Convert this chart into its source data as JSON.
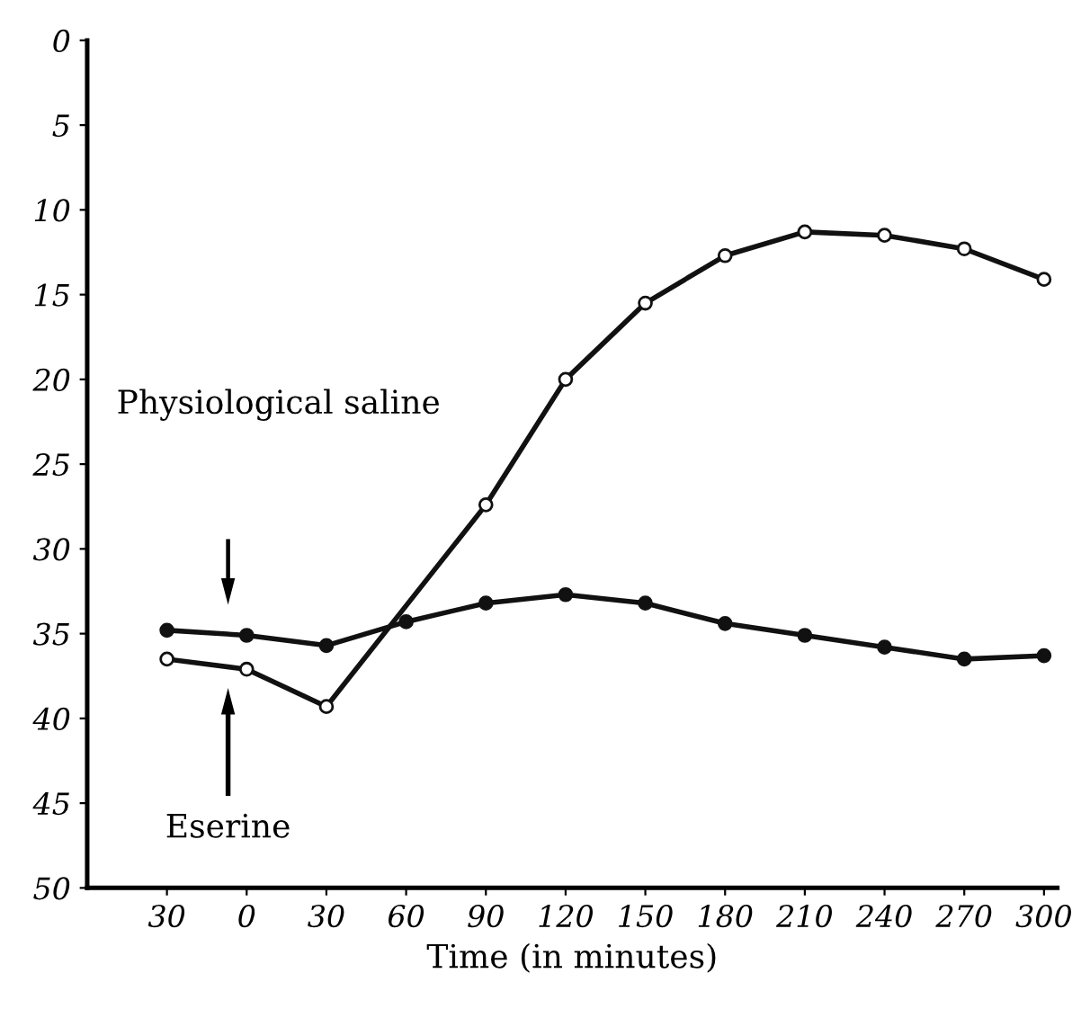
{
  "chart_data": {
    "type": "line",
    "xlabel": "Time (in minutes)",
    "x": [
      -30,
      0,
      30,
      60,
      90,
      120,
      150,
      180,
      210,
      240,
      270,
      300
    ],
    "series": [
      {
        "color": "#111111",
        "values": [
          36.5,
          37.1,
          39.3,
          null,
          27.4,
          20.0,
          15.5,
          12.7,
          11.3,
          11.5,
          12.3,
          14.1
        ]
      },
      {
        "color": "#111111",
        "values": [
          34.8,
          35.1,
          35.7,
          34.3,
          33.2,
          32.7,
          33.2,
          34.4,
          35.1,
          35.8,
          36.5,
          36.3
        ]
      }
    ],
    "annotations": [
      "Physiological saline",
      "Eserine"
    ],
    "xlim": [
      -60,
      305
    ],
    "ylim": [
      50,
      0
    ],
    "xticks": [
      {
        "value": -30,
        "label": "30"
      },
      0,
      30,
      60,
      90,
      120,
      150,
      180,
      210,
      240,
      270,
      300
    ],
    "yticks": [
      0,
      5,
      10,
      15,
      20,
      25,
      30,
      35,
      40,
      45,
      50
    ],
    "marker": "circle",
    "line_style": "solid",
    "grid": false,
    "legend": false
  }
}
